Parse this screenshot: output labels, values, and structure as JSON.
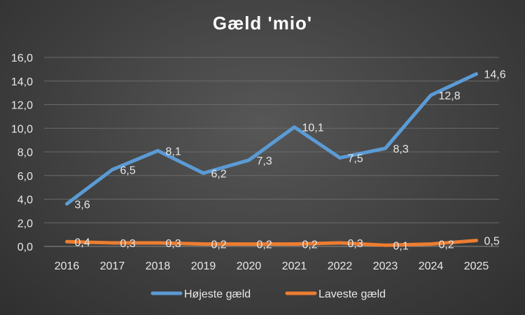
{
  "chart_data": {
    "type": "line",
    "title": "Gæld 'mio'",
    "categories": [
      "2016",
      "2017",
      "2018",
      "2019",
      "2020",
      "2021",
      "2022",
      "2023",
      "2024",
      "2025"
    ],
    "y_ticks": [
      "0,0",
      "2,0",
      "4,0",
      "6,0",
      "8,0",
      "10,0",
      "12,0",
      "14,0",
      "16,0"
    ],
    "ylim": [
      0,
      16
    ],
    "grid": true,
    "legend_position": "bottom",
    "series": [
      {
        "name": "Højeste gæld",
        "color": "#5b9bd5",
        "values": [
          3.6,
          6.5,
          8.1,
          6.2,
          7.3,
          10.1,
          7.5,
          8.3,
          12.8,
          14.6
        ],
        "labels": [
          "3,6",
          "6,5",
          "8,1",
          "6,2",
          "7,3",
          "10,1",
          "7,5",
          "8,3",
          "12,8",
          "14,6"
        ]
      },
      {
        "name": "Laveste gæld",
        "color": "#ed7d31",
        "values": [
          0.4,
          0.3,
          0.3,
          0.2,
          0.2,
          0.2,
          0.3,
          0.1,
          0.2,
          0.5
        ],
        "labels": [
          "0,4",
          "0,3",
          "0,3",
          "0,2",
          "0,2",
          "0,2",
          "0,3",
          "0,1",
          "0,2",
          "0,5"
        ]
      }
    ]
  }
}
